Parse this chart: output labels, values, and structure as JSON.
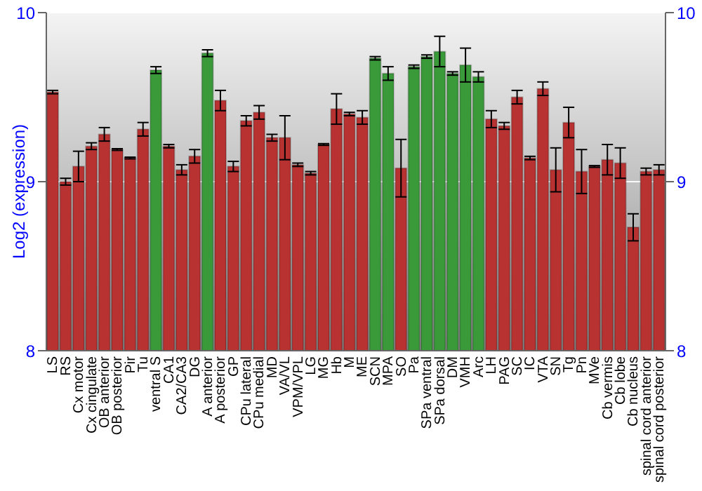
{
  "chart_data": {
    "type": "bar",
    "ylabel": "Log2 (expression)",
    "categories": [
      "LS",
      "RS",
      "Cx motor",
      "Cx cingulate",
      "OB anterior",
      "OB posterior",
      "Pir",
      "Tu",
      "ventral S",
      "CA1",
      "CA2/CA3",
      "DG",
      "A anterior",
      "A posterior",
      "GP",
      "CPu lateral",
      "CPu medial",
      "MD",
      "VA/VL",
      "VPM/VPL",
      "LG",
      "MG",
      "Hb",
      "M",
      "ME",
      "SCN",
      "MPA",
      "SO",
      "Pa",
      "SPa ventral",
      "SPa dorsal",
      "DM",
      "VMH",
      "Arc",
      "LH",
      "PAG",
      "SC",
      "IC",
      "VTA",
      "SN",
      "Tg",
      "Pn",
      "MVe",
      "Cb vermis",
      "Cb lobe",
      "Cb nucleus",
      "spinal cord anterior",
      "spinal cord posterior"
    ],
    "values": [
      9.53,
      9.0,
      9.09,
      9.21,
      9.28,
      9.19,
      9.14,
      9.31,
      9.66,
      9.21,
      9.07,
      9.15,
      9.76,
      9.48,
      9.09,
      9.36,
      9.41,
      9.26,
      9.26,
      9.1,
      9.05,
      9.22,
      9.43,
      9.4,
      9.38,
      9.73,
      9.64,
      9.08,
      9.68,
      9.74,
      9.77,
      9.64,
      9.69,
      9.62,
      9.37,
      9.33,
      9.5,
      9.14,
      9.55,
      9.07,
      9.35,
      9.06,
      9.09,
      9.13,
      9.11,
      8.73,
      9.06,
      9.07
    ],
    "errors": [
      0.01,
      0.02,
      0.09,
      0.02,
      0.04,
      0.005,
      0.005,
      0.04,
      0.02,
      0.01,
      0.03,
      0.04,
      0.02,
      0.06,
      0.03,
      0.03,
      0.04,
      0.02,
      0.13,
      0.01,
      0.01,
      0.005,
      0.09,
      0.01,
      0.04,
      0.01,
      0.04,
      0.17,
      0.01,
      0.01,
      0.09,
      0.01,
      0.1,
      0.03,
      0.05,
      0.02,
      0.04,
      0.01,
      0.04,
      0.13,
      0.09,
      0.13,
      0.005,
      0.09,
      0.09,
      0.08,
      0.02,
      0.03
    ],
    "colors": [
      "#b83232",
      "#b83232",
      "#b83232",
      "#b83232",
      "#b83232",
      "#b83232",
      "#b83232",
      "#b83232",
      "#3a9a3a",
      "#b83232",
      "#b83232",
      "#b83232",
      "#3a9a3a",
      "#b83232",
      "#b83232",
      "#b83232",
      "#b83232",
      "#b83232",
      "#b83232",
      "#b83232",
      "#b83232",
      "#b83232",
      "#b83232",
      "#b83232",
      "#b83232",
      "#3a9a3a",
      "#3a9a3a",
      "#b83232",
      "#3a9a3a",
      "#3a9a3a",
      "#3a9a3a",
      "#3a9a3a",
      "#3a9a3a",
      "#3a9a3a",
      "#b83232",
      "#b83232",
      "#b83232",
      "#b83232",
      "#b83232",
      "#b83232",
      "#b83232",
      "#b83232",
      "#b83232",
      "#b83232",
      "#b83232",
      "#b83232",
      "#b83232",
      "#b83232"
    ],
    "ylim": [
      8,
      10
    ],
    "yticks": [
      8,
      9,
      10
    ],
    "y2lim": [
      8,
      10
    ],
    "y2ticks": [
      8,
      9,
      10
    ],
    "grid": "y"
  }
}
